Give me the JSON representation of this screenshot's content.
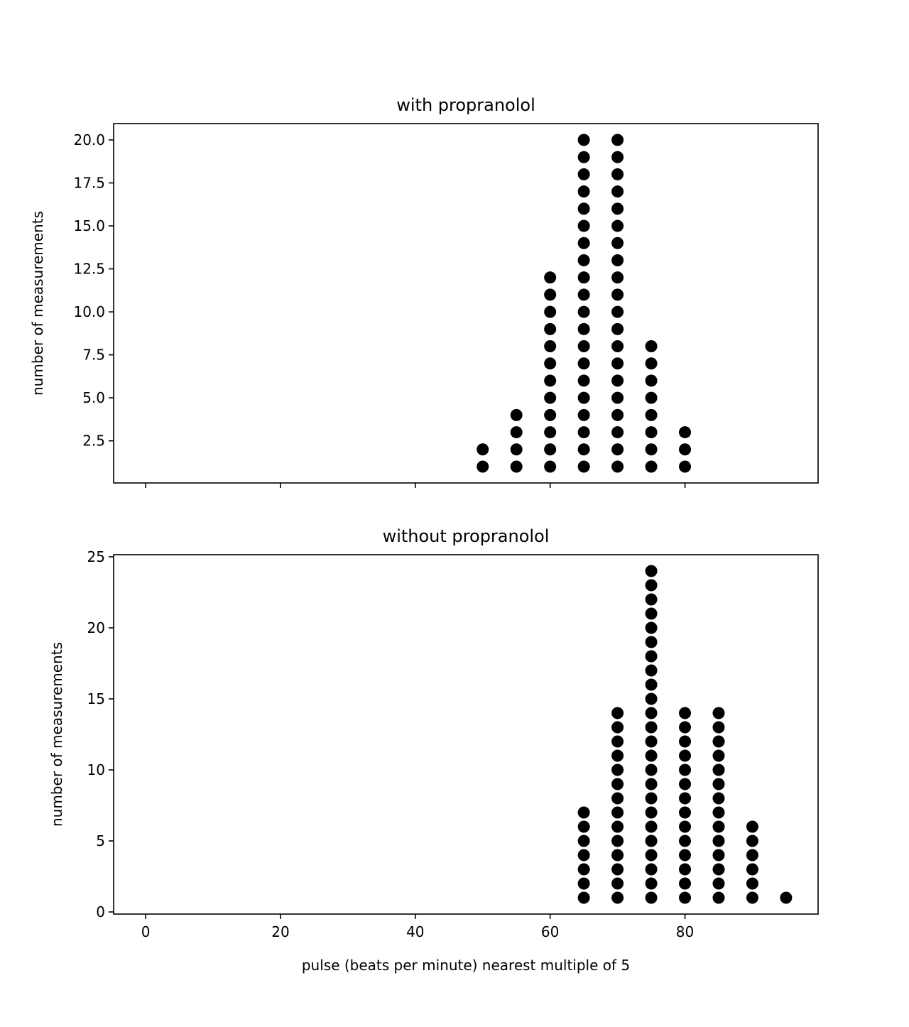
{
  "chart_data": [
    {
      "type": "scatter",
      "title": "with propranolol",
      "ylabel": "number of measurements",
      "xlabel": "",
      "xlim": [
        -4.75,
        99.75
      ],
      "ylim": [
        0.05,
        20.95
      ],
      "xticks": [
        "0",
        "20",
        "40",
        "60",
        "80"
      ],
      "xtick_values": [
        0,
        20,
        40,
        60,
        80
      ],
      "show_xtick_labels": false,
      "yticks": [
        "2.5",
        "5.0",
        "7.5",
        "10.0",
        "12.5",
        "15.0",
        "17.5",
        "20.0"
      ],
      "ytick_values": [
        2.5,
        5,
        7.5,
        10,
        12.5,
        15,
        17.5,
        20
      ],
      "grid": false,
      "marker_color": "#000000",
      "columns": [
        {
          "x": 50,
          "count": 2
        },
        {
          "x": 55,
          "count": 4
        },
        {
          "x": 60,
          "count": 12
        },
        {
          "x": 65,
          "count": 20
        },
        {
          "x": 70,
          "count": 20
        },
        {
          "x": 75,
          "count": 8
        },
        {
          "x": 80,
          "count": 3
        }
      ]
    },
    {
      "type": "scatter",
      "title": "without propranolol",
      "ylabel": "number of measurements",
      "xlabel": "pulse (beats per minute) nearest multiple of 5",
      "xlim": [
        -4.75,
        99.75
      ],
      "ylim": [
        -0.15,
        25.15
      ],
      "xticks": [
        "0",
        "20",
        "40",
        "60",
        "80"
      ],
      "xtick_values": [
        0,
        20,
        40,
        60,
        80
      ],
      "show_xtick_labels": true,
      "yticks": [
        "0",
        "5",
        "10",
        "15",
        "20",
        "25"
      ],
      "ytick_values": [
        0,
        5,
        10,
        15,
        20,
        25
      ],
      "grid": false,
      "marker_color": "#000000",
      "columns": [
        {
          "x": 65,
          "count": 7
        },
        {
          "x": 70,
          "count": 14
        },
        {
          "x": 75,
          "count": 24
        },
        {
          "x": 80,
          "count": 14
        },
        {
          "x": 85,
          "count": 14
        },
        {
          "x": 90,
          "count": 6
        },
        {
          "x": 95,
          "count": 1
        }
      ]
    }
  ]
}
